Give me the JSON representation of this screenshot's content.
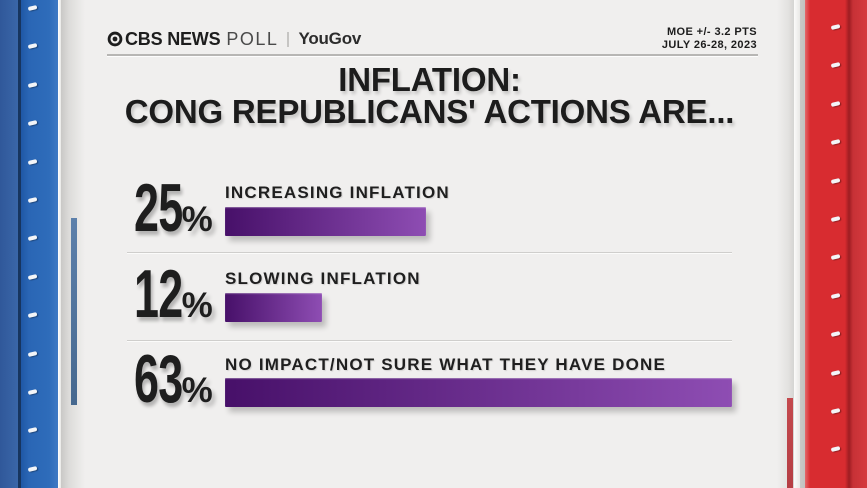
{
  "header": {
    "brand_cbs": "CBS NEWS",
    "brand_poll": "POLL",
    "brand_partner": "YouGov",
    "moe_line1": "MOE +/- 3.2 PTS",
    "moe_line2": "JULY 26-28, 2023"
  },
  "title": {
    "line1": "INFLATION:",
    "line2": "CONG REPUBLICANS' ACTIONS ARE..."
  },
  "chart_data": {
    "type": "bar",
    "orientation": "horizontal",
    "title": "INFLATION: CONG REPUBLICANS' ACTIONS ARE...",
    "categories": [
      "INCREASING INFLATION",
      "SLOWING INFLATION",
      "NO IMPACT/NOT SURE WHAT THEY HAVE DONE"
    ],
    "values": [
      25,
      12,
      63
    ],
    "unit": "%",
    "xlim": [
      0,
      100
    ],
    "grid": false,
    "legend": false,
    "bar_gradient": [
      "#471069",
      "#8e4db3"
    ]
  },
  "colors": {
    "background": "#f0efee",
    "border_blue": "#2e6cba",
    "border_red": "#d82c30",
    "bar_dark_purple": "#471069",
    "bar_light_purple": "#8e4db3",
    "text": "#1d1d1d"
  }
}
